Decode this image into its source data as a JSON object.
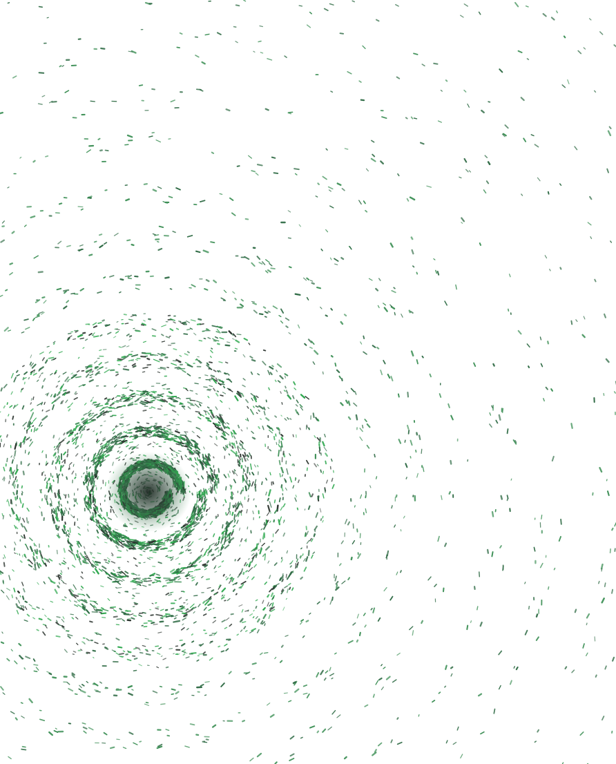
{
  "artwork": {
    "subject": "spiral-particle-swirl",
    "background_color": "#ffffff",
    "palette": {
      "dark_green": "#2f6b45",
      "mid_green": "#3c8f55",
      "bright_green": "#2fa84f",
      "core_dark": "#1f2a24",
      "near_black": "#2a332d"
    },
    "visible_rings": 14
  }
}
